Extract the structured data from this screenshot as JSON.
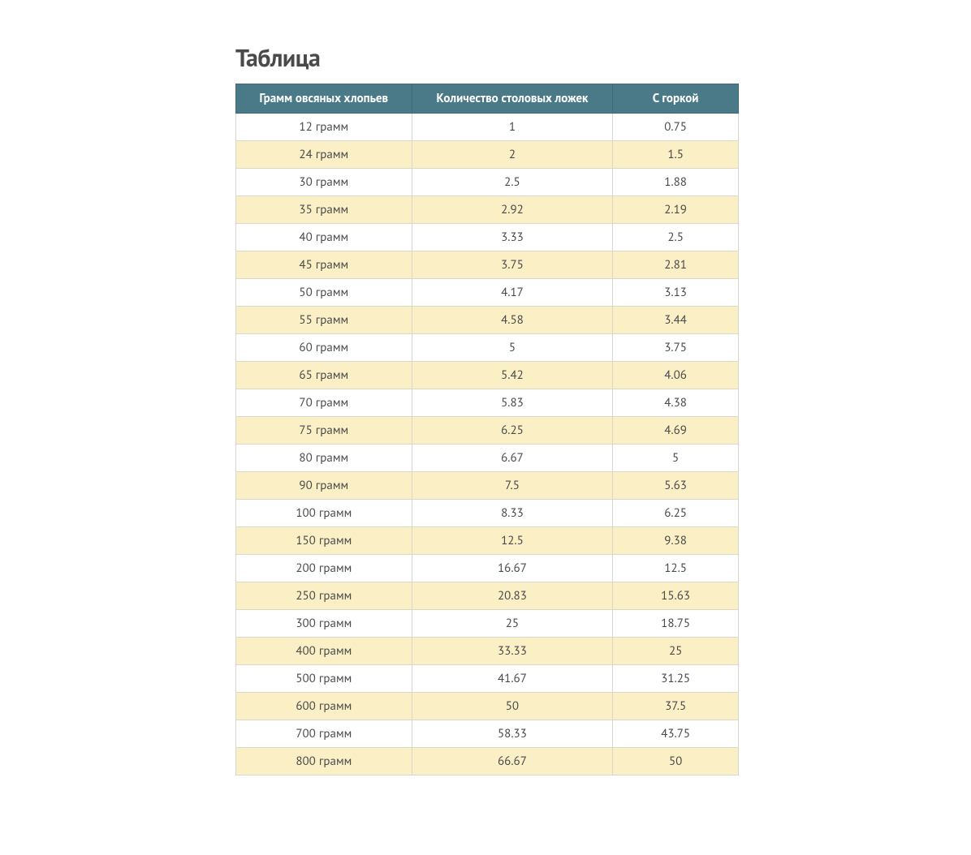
{
  "title": "Таблица",
  "table": {
    "type": "table",
    "header_bg": "#4a7a87",
    "header_text_color": "#ffffff",
    "row_odd_bg": "#ffffff",
    "row_even_bg": "#faefc5",
    "border_color": "#d9d6cc",
    "text_color": "#4a4a4a",
    "title_fontsize": 30,
    "cell_fontsize": 15,
    "col_widths_pct": [
      35,
      40,
      25
    ],
    "columns": [
      "Грамм овсяных хлопьев",
      "Количество столовых ложек",
      "С горкой"
    ],
    "rows": [
      [
        "12 грамм",
        "1",
        "0.75"
      ],
      [
        "24 грамм",
        "2",
        "1.5"
      ],
      [
        "30 грамм",
        "2.5",
        "1.88"
      ],
      [
        "35 грамм",
        "2.92",
        "2.19"
      ],
      [
        "40 грамм",
        "3.33",
        "2.5"
      ],
      [
        "45 грамм",
        "3.75",
        "2.81"
      ],
      [
        "50 грамм",
        "4.17",
        "3.13"
      ],
      [
        "55 грамм",
        "4.58",
        "3.44"
      ],
      [
        "60 грамм",
        "5",
        "3.75"
      ],
      [
        "65 грамм",
        "5.42",
        "4.06"
      ],
      [
        "70 грамм",
        "5.83",
        "4.38"
      ],
      [
        "75 грамм",
        "6.25",
        "4.69"
      ],
      [
        "80 грамм",
        "6.67",
        "5"
      ],
      [
        "90 грамм",
        "7.5",
        "5.63"
      ],
      [
        "100 грамм",
        "8.33",
        "6.25"
      ],
      [
        "150 грамм",
        "12.5",
        "9.38"
      ],
      [
        "200 грамм",
        "16.67",
        "12.5"
      ],
      [
        "250 грамм",
        "20.83",
        "15.63"
      ],
      [
        "300 грамм",
        "25",
        "18.75"
      ],
      [
        "400 грамм",
        "33.33",
        "25"
      ],
      [
        "500 грамм",
        "41.67",
        "31.25"
      ],
      [
        "600 грамм",
        "50",
        "37.5"
      ],
      [
        "700 грамм",
        "58.33",
        "43.75"
      ],
      [
        "800 грамм",
        "66.67",
        "50"
      ]
    ]
  }
}
